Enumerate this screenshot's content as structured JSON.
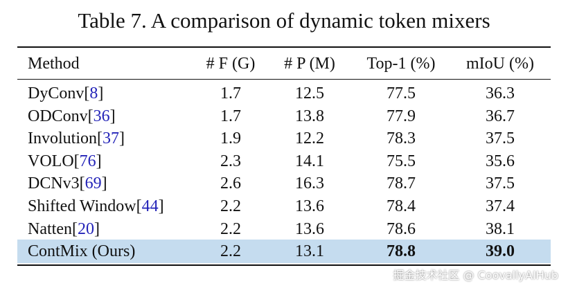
{
  "title": "Table 7. A comparison of dynamic token mixers",
  "table": {
    "header": [
      "Method",
      "# F (G)",
      "# P (M)",
      "Top-1 (%)",
      "mIoU (%)"
    ],
    "rows": [
      {
        "method": [
          "DyConv[",
          "8",
          "]"
        ],
        "cells": [
          "1.7",
          "12.5",
          "77.5",
          "36.3"
        ]
      },
      {
        "method": [
          "ODConv[",
          "36",
          "]"
        ],
        "cells": [
          "1.7",
          "13.8",
          "77.9",
          "36.7"
        ]
      },
      {
        "method": [
          "Involution[",
          "37",
          "]"
        ],
        "cells": [
          "1.9",
          "12.2",
          "78.3",
          "37.5"
        ]
      },
      {
        "method": [
          "VOLO[",
          "76",
          "]"
        ],
        "cells": [
          "2.3",
          "14.1",
          "75.5",
          "35.6"
        ]
      },
      {
        "method": [
          "DCNv3[",
          "69",
          "]"
        ],
        "cells": [
          "2.6",
          "16.3",
          "78.7",
          "37.5"
        ]
      },
      {
        "method": [
          "Shifted Window[",
          "44",
          "]"
        ],
        "cells": [
          "2.2",
          "13.6",
          "78.4",
          "37.4"
        ]
      },
      {
        "method": [
          "Natten[",
          "20",
          "]"
        ],
        "cells": [
          "2.2",
          "13.6",
          "78.6",
          "38.1"
        ]
      },
      {
        "method": [
          "ContMix (Ours)"
        ],
        "cells": [
          "2.2",
          "13.1",
          "78.8",
          "39.0"
        ],
        "highlight": true,
        "bold_cells": [
          2,
          3
        ]
      }
    ]
  },
  "watermark": "掘金技术社区 @ CoovallyAIHub"
}
